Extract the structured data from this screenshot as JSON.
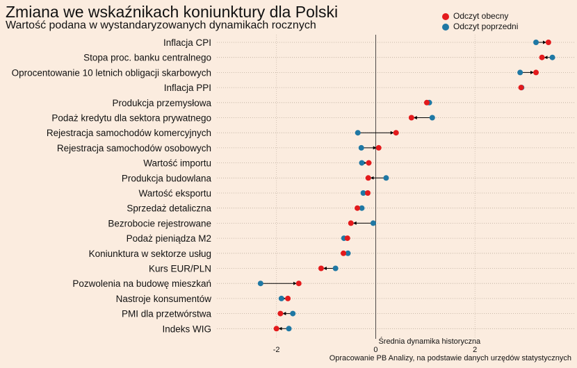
{
  "header": {
    "title": "Zmiana we wskaźnikach koniunktury dla Polski",
    "subtitle": "Wartość podana w wystandaryzowanych dynamikach rocznych"
  },
  "legend": {
    "current_label": "Odczyt obecny",
    "previous_label": "Odczyt poprzedni"
  },
  "colors": {
    "current": "#e31a1c",
    "previous": "#1f78a4",
    "background": "#fbecdf"
  },
  "chart_data": {
    "type": "dumbbell",
    "x_ticks": [
      "-2",
      "0",
      "2"
    ],
    "xlim": [
      -3.2,
      4.0
    ],
    "zero_line_label": "Średnia dynamika historyczna",
    "source": "Opracowanie  PB Analizy, na podstawie danych urzędów statystycznych",
    "categories": [
      "Inflacja CPI",
      "Stopa proc. banku centralnego",
      "Oprocentowanie 10 letnich obligacji skarbowych",
      "Inflacja PPI",
      "Produkcja przemysłowa",
      "Podaż kredytu dla sektora prywatnego",
      "Rejestracja samochodów komercyjnych",
      "Rejestracja samochodów osobowych",
      "Wartość importu",
      "Produkcja budowlana",
      "Wartość eksportu",
      "Sprzedaż detaliczna",
      "Bezrobocie rejestrowane",
      "Podaż pieniądza M2",
      "Koniunktura w sektorze usług",
      "Kurs EUR/PLN",
      "Pozwolenia na budowę mieszkań",
      "Nastroje konsumentów",
      "PMI dla przetwórstwa",
      "Indeks WIG"
    ],
    "series": [
      {
        "name": "Odczyt obecny",
        "values": [
          3.48,
          3.35,
          3.23,
          2.93,
          1.03,
          0.72,
          0.41,
          0.06,
          -0.14,
          -0.15,
          -0.16,
          -0.37,
          -0.5,
          -0.57,
          -0.65,
          -1.1,
          -1.55,
          -1.77,
          -1.92,
          -2.0
        ]
      },
      {
        "name": "Odczyt poprzedni",
        "values": [
          3.23,
          3.56,
          2.91,
          2.94,
          1.08,
          1.14,
          -0.36,
          -0.29,
          -0.28,
          0.21,
          -0.25,
          -0.28,
          -0.05,
          -0.64,
          -0.56,
          -0.81,
          -2.32,
          -1.9,
          -1.67,
          -1.75
        ]
      }
    ]
  }
}
